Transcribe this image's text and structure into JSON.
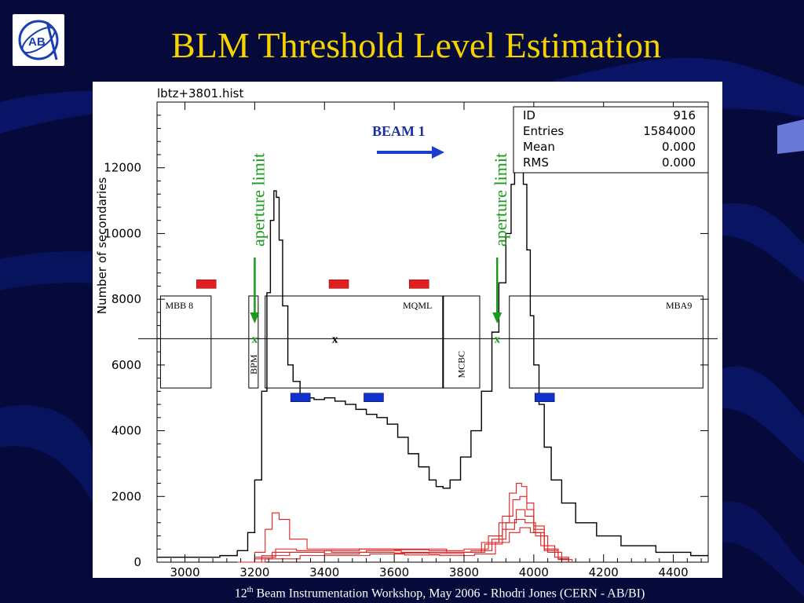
{
  "slide": {
    "title": "BLM Threshold Level Estimation",
    "footer": {
      "num": "12",
      "sup": "th",
      "rest": " Beam Instrumentation Workshop, May 2006   -  Rhodri Jones (CERN - AB/BI)"
    },
    "logo_text": "AB",
    "colors": {
      "background": "#050a3a",
      "title": "#f5d300",
      "histogram": "#000000",
      "red_curves": "#e02020",
      "red_markers": "#e02020",
      "blue_markers": "#1030d0",
      "annotation": "#1a9a1a"
    }
  },
  "chart_data": {
    "type": "line",
    "title": "lbtz+3801.hist",
    "xlabel": "",
    "ylabel": "Number of secondaries",
    "xlim": [
      2920,
      4500
    ],
    "ylim": [
      0,
      14000
    ],
    "x_ticks": [
      3000,
      3200,
      3400,
      3600,
      3800,
      4000,
      4200,
      4400
    ],
    "y_ticks": [
      0,
      2000,
      4000,
      6000,
      8000,
      10000,
      12000
    ],
    "grid": false,
    "stats_box": [
      {
        "label": "ID",
        "value": "916"
      },
      {
        "label": "Entries",
        "value": "1584000"
      },
      {
        "label": "Mean",
        "value": "0.000"
      },
      {
        "label": "RMS",
        "value": "0.000"
      }
    ],
    "series": [
      {
        "color": "#000000",
        "x": [
          2920,
          3000,
          3100,
          3150,
          3180,
          3200,
          3220,
          3235,
          3245,
          3255,
          3262,
          3270,
          3280,
          3295,
          3310,
          3330,
          3350,
          3370,
          3400,
          3430,
          3460,
          3490,
          3520,
          3550,
          3580,
          3610,
          3640,
          3670,
          3700,
          3720,
          3740,
          3760,
          3790,
          3820,
          3850,
          3880,
          3900,
          3920,
          3935,
          3945,
          3955,
          3962,
          3970,
          3980,
          3990,
          4000,
          4015,
          4030,
          4050,
          4080,
          4120,
          4180,
          4250,
          4350,
          4450,
          4500
        ],
        "y": [
          150,
          150,
          200,
          350,
          900,
          2500,
          5200,
          8200,
          10400,
          11300,
          11100,
          9800,
          7800,
          6000,
          5500,
          5050,
          5000,
          4950,
          5000,
          4900,
          4800,
          4650,
          4500,
          4400,
          4200,
          3800,
          3300,
          2900,
          2500,
          2300,
          2250,
          2500,
          3200,
          4000,
          5200,
          7000,
          8500,
          10000,
          11500,
          12400,
          12800,
          12600,
          11500,
          9500,
          7500,
          6000,
          4800,
          3500,
          2500,
          1800,
          1200,
          800,
          500,
          300,
          200,
          200
        ]
      },
      {
        "color": "#e02020",
        "x": [
          3150,
          3200,
          3230,
          3250,
          3270,
          3300,
          3350,
          3450,
          3600,
          3750,
          3850,
          3900,
          3930,
          3950,
          3965,
          3980,
          4000,
          4030,
          4070,
          4100
        ],
        "y": [
          0,
          300,
          1000,
          1500,
          1300,
          700,
          400,
          400,
          400,
          300,
          600,
          1200,
          2100,
          2400,
          2300,
          1800,
          1100,
          400,
          100,
          0
        ]
      },
      {
        "color": "#e02020",
        "x": [
          3150,
          3200,
          3250,
          3300,
          3400,
          3500,
          3600,
          3700,
          3800,
          3870,
          3910,
          3940,
          3960,
          3980,
          4000,
          4030,
          4070,
          4100
        ],
        "y": [
          0,
          100,
          300,
          300,
          350,
          400,
          380,
          350,
          400,
          800,
          1400,
          1900,
          2000,
          1600,
          1000,
          400,
          100,
          0
        ]
      },
      {
        "color": "#e02020",
        "x": [
          3150,
          3200,
          3260,
          3320,
          3420,
          3520,
          3620,
          3720,
          3820,
          3880,
          3920,
          3950,
          3975,
          4000,
          4030,
          4070,
          4100
        ],
        "y": [
          0,
          150,
          400,
          350,
          300,
          350,
          300,
          300,
          350,
          700,
          1200,
          1600,
          1400,
          900,
          350,
          80,
          0
        ]
      },
      {
        "color": "#e02020",
        "x": [
          3150,
          3220,
          3300,
          3400,
          3500,
          3600,
          3700,
          3800,
          3860,
          3910,
          3945,
          3975,
          4005,
          4040,
          4080,
          4110
        ],
        "y": [
          0,
          200,
          300,
          250,
          300,
          280,
          260,
          300,
          550,
          1000,
          1300,
          1200,
          800,
          300,
          80,
          0
        ]
      },
      {
        "color": "#e02020",
        "x": [
          3150,
          3230,
          3330,
          3430,
          3530,
          3630,
          3730,
          3830,
          3890,
          3930,
          3960,
          3990,
          4020,
          4060,
          4100
        ],
        "y": [
          0,
          100,
          200,
          200,
          250,
          220,
          200,
          250,
          600,
          900,
          1050,
          900,
          500,
          150,
          0
        ]
      }
    ],
    "elements": [
      {
        "name": "MBB 8",
        "x0": 2930,
        "x1": 3075,
        "y0": 5300,
        "y1": 8100,
        "label_pos": "top-left"
      },
      {
        "name": "BPM",
        "x0": 3183,
        "x1": 3210,
        "y0": 5300,
        "y1": 8100,
        "label_pos": "vertical"
      },
      {
        "name": "MQML",
        "x0": 3230,
        "x1": 3740,
        "y0": 5300,
        "y1": 8100,
        "label_pos": "top-right"
      },
      {
        "name": "MCBC",
        "x0": 3740,
        "x1": 3845,
        "y0": 5300,
        "y1": 8100,
        "label_pos": "vertical"
      },
      {
        "name": "MBA9",
        "x0": 3930,
        "x1": 4485,
        "y0": 5300,
        "y1": 8100,
        "label_pos": "top-right"
      }
    ],
    "beam_line_y": 6800,
    "x_markers": [
      3200,
      3430,
      3895
    ],
    "x_marker_label": "x",
    "red_markers": [
      {
        "x": 3060,
        "y": 8450
      },
      {
        "x": 3440,
        "y": 8450
      },
      {
        "x": 3670,
        "y": 8450
      }
    ],
    "blue_markers": [
      {
        "x": 3330,
        "y": 5000
      },
      {
        "x": 3540,
        "y": 5000
      },
      {
        "x": 4030,
        "y": 5000
      }
    ],
    "beam_label": "BEAM 1",
    "aperture_label": "aperture limit",
    "aperture_arrows": [
      {
        "x": 3200
      },
      {
        "x": 3895
      }
    ]
  }
}
